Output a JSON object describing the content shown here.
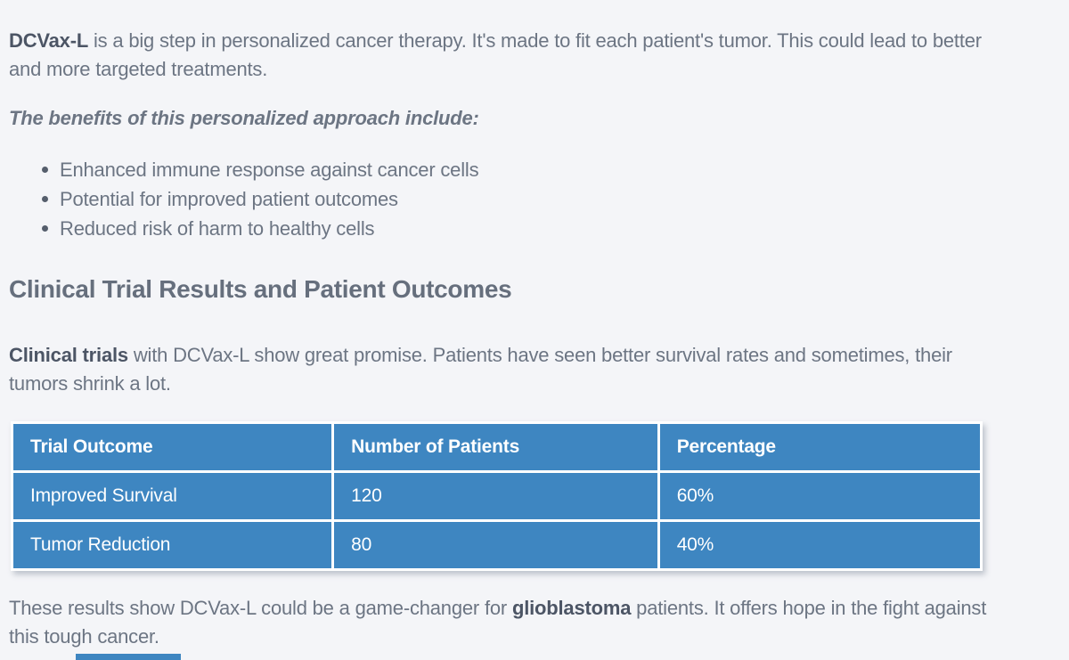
{
  "colors": {
    "page_background": "#f4f5f8",
    "table_blue": "#3e86c1",
    "table_border_white": "#ffffff",
    "body_text_gray": "#6c7583",
    "strong_text_dark": "#4c5565",
    "heading_gray": "#666f7d"
  },
  "intro_paragraph": {
    "bold_lead": "DCVax-L",
    "text": " is a big step in personalized cancer therapy. It's made to fit each patient's tumor. This could lead to better and more targeted treatments."
  },
  "benefits": {
    "lead_in": "The benefits of this personalized approach include:",
    "items": [
      "Enhanced immune response against cancer cells",
      "Potential for improved patient outcomes",
      "Reduced risk of harm to healthy cells"
    ]
  },
  "clinical_section": {
    "heading": "Clinical Trial Results and Patient Outcomes",
    "paragraph_bold_lead": "Clinical trials",
    "paragraph_text": " with DCVax-L show great promise. Patients have seen better survival rates and sometimes, their tumors shrink a lot."
  },
  "results_table": {
    "headers": [
      "Trial Outcome",
      "Number of Patients",
      "Percentage"
    ],
    "rows": [
      [
        "Improved Survival",
        "120",
        "60%"
      ],
      [
        "Tumor Reduction",
        "80",
        "40%"
      ]
    ]
  },
  "chart_data": {
    "type": "table",
    "title": "Clinical Trial Results and Patient Outcomes",
    "columns": [
      "Trial Outcome",
      "Number of Patients",
      "Percentage"
    ],
    "rows": [
      [
        "Improved Survival",
        "120",
        "60%"
      ],
      [
        "Tumor Reduction",
        "80",
        "40%"
      ]
    ],
    "series": [
      {
        "name": "Number of Patients",
        "categories": [
          "Improved Survival",
          "Tumor Reduction"
        ],
        "values": [
          120,
          80
        ]
      },
      {
        "name": "Percentage",
        "categories": [
          "Improved Survival",
          "Tumor Reduction"
        ],
        "values": [
          60,
          40
        ]
      }
    ]
  },
  "conclusion_paragraph": {
    "text_before": "These results show DCVax-L could be a game-changer for ",
    "bold_word": "glioblastoma",
    "text_after": " patients. It offers hope in the fight against this tough cancer."
  }
}
